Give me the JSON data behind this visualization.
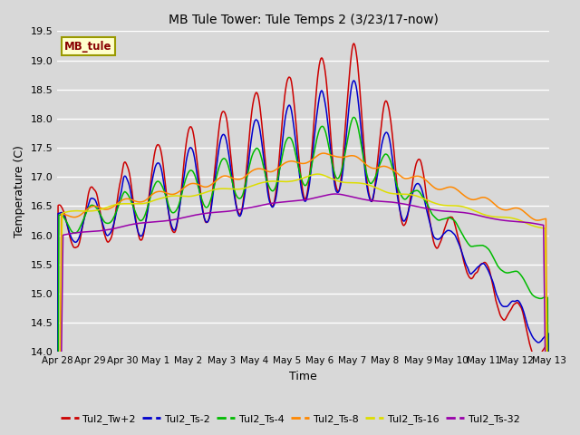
{
  "title": "MB Tule Tower: Tule Temps 2 (3/23/17-now)",
  "xlabel": "Time",
  "ylabel": "Temperature (C)",
  "ylim": [
    14.0,
    19.5
  ],
  "yticks": [
    14.0,
    14.5,
    15.0,
    15.5,
    16.0,
    16.5,
    17.0,
    17.5,
    18.0,
    18.5,
    19.0,
    19.5
  ],
  "background_color": "#d8d8d8",
  "plot_bg_color": "#d8d8d8",
  "grid_color": "#ffffff",
  "series_colors": {
    "Tul2_Tw+2": "#cc0000",
    "Tul2_Ts-2": "#0000cc",
    "Tul2_Ts-4": "#00bb00",
    "Tul2_Ts-8": "#ff8800",
    "Tul2_Ts-16": "#dddd00",
    "Tul2_Ts-32": "#9900aa"
  },
  "xtick_labels": [
    "Apr 28",
    "Apr 29",
    "Apr 30",
    "May 1",
    "May 2",
    "May 3",
    "May 4",
    "May 5",
    "May 6",
    "May 7",
    "May 8",
    "May 9",
    "May 10",
    "May 11",
    "May 12",
    "May 13"
  ],
  "num_points": 600,
  "station_label": "MB_tule",
  "station_label_color": "#880000",
  "station_box_facecolor": "#ffffcc",
  "station_box_edgecolor": "#999900"
}
